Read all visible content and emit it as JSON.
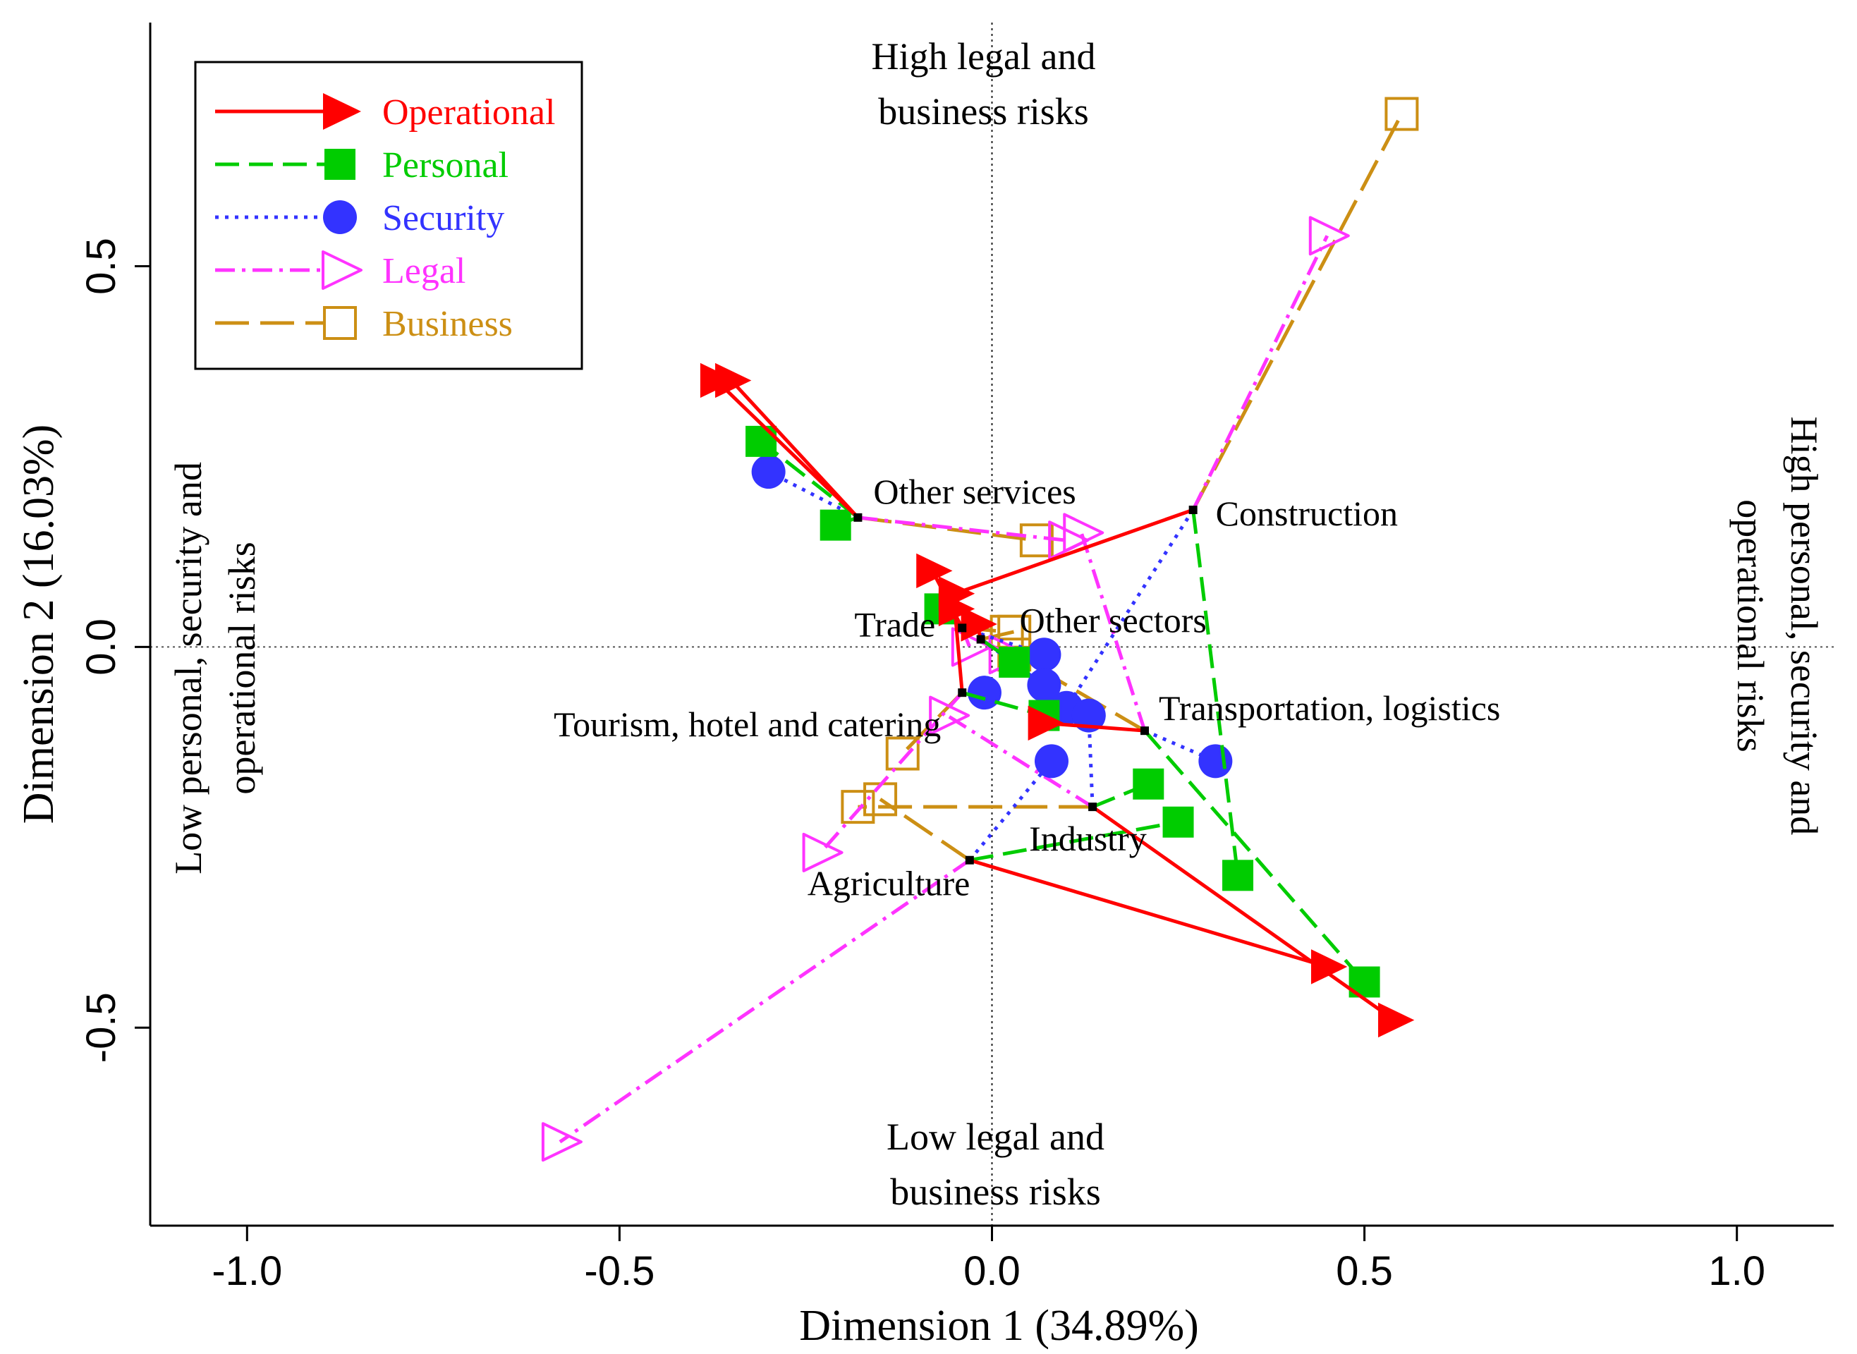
{
  "chart_data": {
    "type": "scatter",
    "title": "",
    "xlabel": "Dimension 1 (34.89%)",
    "ylabel": "Dimension 2 (16.03%)",
    "xlim": [
      -1.13,
      1.13
    ],
    "ylim": [
      -0.76,
      0.82
    ],
    "x_ticks": [
      -1.0,
      -0.5,
      0.0,
      0.5,
      1.0
    ],
    "x_tick_labels": [
      "-1.0",
      "-0.5",
      "0.0",
      "0.5",
      "1.0"
    ],
    "y_ticks": [
      -0.5,
      0.0,
      0.5
    ],
    "y_tick_labels": [
      "-0.5",
      "0.0",
      "0.5"
    ],
    "grid": false,
    "reference_lines": [
      0,
      0
    ],
    "legend_position": "top-left",
    "side_labels": {
      "top": [
        "High legal and",
        "business risks"
      ],
      "bottom": [
        "Low legal and",
        "business risks"
      ],
      "left": [
        "Low personal, security and",
        "operational risks"
      ],
      "right": [
        "High personal, security and",
        "operational risks"
      ]
    },
    "sectors": [
      {
        "name": "Other services",
        "x": -0.18,
        "y": 0.17
      },
      {
        "name": "Construction",
        "x": 0.27,
        "y": 0.18
      },
      {
        "name": "Trade",
        "x": -0.04,
        "y": 0.025
      },
      {
        "name": "Other sectors",
        "x": -0.015,
        "y": 0.01
      },
      {
        "name": "Tourism, hotel and catering",
        "x": -0.04,
        "y": -0.06
      },
      {
        "name": "Transportation, logistics",
        "x": 0.205,
        "y": -0.11
      },
      {
        "name": "Industry",
        "x": 0.135,
        "y": -0.21
      },
      {
        "name": "Agriculture",
        "x": -0.03,
        "y": -0.28
      }
    ],
    "series": [
      {
        "name": "Operational",
        "color": "#ff0000",
        "dash": "solid",
        "marker": "filled-triangle",
        "points": [
          {
            "sector": "Other services",
            "x": -0.37,
            "y": 0.35
          },
          {
            "sector": "Other services",
            "x": -0.35,
            "y": 0.35
          },
          {
            "sector": "Construction",
            "x": -0.05,
            "y": 0.07
          },
          {
            "sector": "Trade",
            "x": -0.08,
            "y": 0.1
          },
          {
            "sector": "Other sectors",
            "x": -0.02,
            "y": 0.03
          },
          {
            "sector": "Tourism, hotel and catering",
            "x": -0.05,
            "y": 0.05
          },
          {
            "sector": "Transportation, logistics",
            "x": 0.07,
            "y": -0.1
          },
          {
            "sector": "Industry",
            "x": 0.54,
            "y": -0.49
          },
          {
            "sector": "Agriculture",
            "x": 0.45,
            "y": -0.42
          }
        ]
      },
      {
        "name": "Personal",
        "color": "#00cc00",
        "dash": "dashed",
        "marker": "filled-square",
        "points": [
          {
            "sector": "Other services",
            "x": -0.31,
            "y": 0.27
          },
          {
            "sector": "Other services",
            "x": -0.21,
            "y": 0.16
          },
          {
            "sector": "Construction",
            "x": 0.33,
            "y": -0.3
          },
          {
            "sector": "Trade",
            "x": -0.07,
            "y": 0.05
          },
          {
            "sector": "Other sectors",
            "x": 0.03,
            "y": -0.02
          },
          {
            "sector": "Tourism, hotel and catering",
            "x": 0.07,
            "y": -0.09
          },
          {
            "sector": "Transportation, logistics",
            "x": 0.5,
            "y": -0.44
          },
          {
            "sector": "Industry",
            "x": 0.21,
            "y": -0.18
          },
          {
            "sector": "Agriculture",
            "x": 0.25,
            "y": -0.23
          }
        ]
      },
      {
        "name": "Security",
        "color": "#3333ff",
        "dash": "dotted",
        "marker": "filled-circle",
        "points": [
          {
            "sector": "Other services",
            "x": -0.3,
            "y": 0.23
          },
          {
            "sector": "Construction",
            "x": 0.1,
            "y": -0.08
          },
          {
            "sector": "Trade",
            "x": 0.07,
            "y": -0.01
          },
          {
            "sector": "Other sectors",
            "x": 0.07,
            "y": -0.05
          },
          {
            "sector": "Tourism, hotel and catering",
            "x": -0.01,
            "y": -0.06
          },
          {
            "sector": "Transportation, logistics",
            "x": 0.3,
            "y": -0.15
          },
          {
            "sector": "Industry",
            "x": 0.13,
            "y": -0.09
          },
          {
            "sector": "Agriculture",
            "x": 0.08,
            "y": -0.15
          }
        ]
      },
      {
        "name": "Legal",
        "color": "#ff33ff",
        "dash": "dashdot",
        "marker": "open-triangle",
        "points": [
          {
            "sector": "Other services",
            "x": 0.1,
            "y": 0.14
          },
          {
            "sector": "Construction",
            "x": 0.45,
            "y": 0.54
          },
          {
            "sector": "Trade",
            "x": -0.03,
            "y": 0.0
          },
          {
            "sector": "Other sectors",
            "x": 0.02,
            "y": -0.01
          },
          {
            "sector": "Tourism, hotel and catering",
            "x": -0.23,
            "y": -0.27
          },
          {
            "sector": "Transportation, logistics",
            "x": 0.12,
            "y": 0.15
          },
          {
            "sector": "Industry",
            "x": -0.06,
            "y": -0.09
          },
          {
            "sector": "Agriculture",
            "x": -0.58,
            "y": -0.65
          }
        ]
      },
      {
        "name": "Business",
        "color": "#cc8f14",
        "dash": "longdash",
        "marker": "open-square",
        "points": [
          {
            "sector": "Other services",
            "x": 0.06,
            "y": 0.14
          },
          {
            "sector": "Construction",
            "x": 0.55,
            "y": 0.7
          },
          {
            "sector": "Trade",
            "x": 0.02,
            "y": 0.02
          },
          {
            "sector": "Other sectors",
            "x": 0.03,
            "y": 0.02
          },
          {
            "sector": "Tourism, hotel and catering",
            "x": -0.12,
            "y": -0.14
          },
          {
            "sector": "Transportation, logistics",
            "x": 0.03,
            "y": -0.01
          },
          {
            "sector": "Industry",
            "x": -0.18,
            "y": -0.21
          },
          {
            "sector": "Agriculture",
            "x": -0.15,
            "y": -0.2
          }
        ]
      }
    ]
  }
}
